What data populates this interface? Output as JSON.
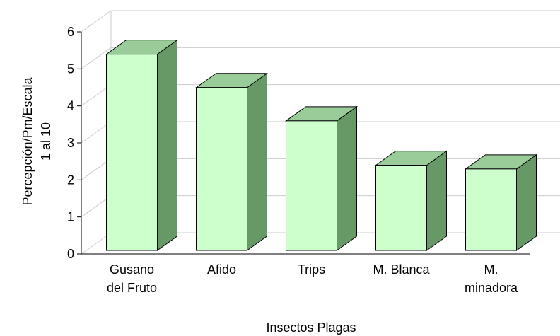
{
  "chart_data": {
    "type": "bar3d",
    "x_label": "Insectos Plagas",
    "y_label": "Percepción/Pm/Escala\n1 al 10",
    "categories": [
      "Gusano\ndel Fruto",
      "Afido",
      "Trips",
      "M. Blanca",
      "M.\nminadora"
    ],
    "values": [
      5.3,
      4.4,
      3.5,
      2.3,
      2.2
    ],
    "colors": {
      "front": "#ccffcc",
      "top": "#99cc99",
      "side": "#669966"
    },
    "ylim": [
      0,
      6
    ],
    "yticks": [
      0,
      1,
      2,
      3,
      4,
      5,
      6
    ],
    "grid": true
  }
}
